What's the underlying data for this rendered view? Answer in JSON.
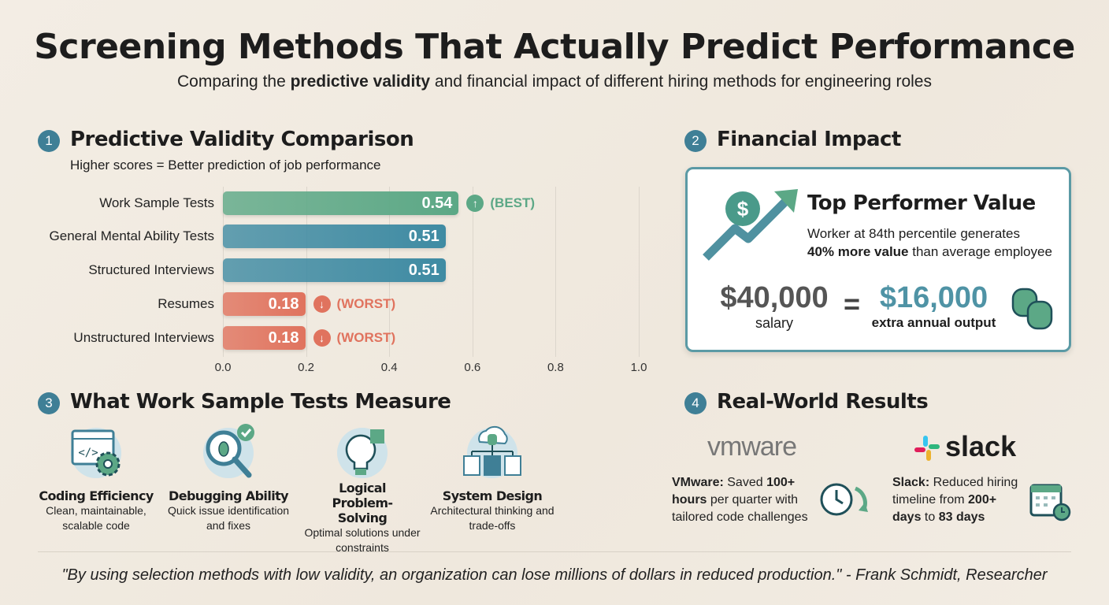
{
  "title": "Screening Methods That Actually Predict Performance",
  "subtitle": {
    "pre": "Comparing the ",
    "bold": "predictive validity",
    "post": " and financial impact of different hiring methods for engineering roles"
  },
  "sections": [
    {
      "number": "1",
      "heading": "Predictive Validity Comparison",
      "subtext": "Higher scores = Better prediction of job performance"
    },
    {
      "number": "2",
      "heading": "Financial Impact"
    },
    {
      "number": "3",
      "heading": "What Work Sample Tests Measure"
    },
    {
      "number": "4",
      "heading": "Real-World Results"
    }
  ],
  "chart_data": {
    "type": "bar",
    "orientation": "horizontal",
    "categories": [
      "Work Sample Tests",
      "General Mental Ability Tests",
      "Structured Interviews",
      "Resumes",
      "Unstructured Interviews"
    ],
    "values": [
      0.54,
      0.51,
      0.51,
      0.18,
      0.18
    ],
    "data_labels": [
      "0.54",
      "0.51",
      "0.51",
      "0.18",
      "0.18"
    ],
    "annotations": [
      "(BEST)",
      "",
      "",
      "(WORST)",
      "(WORST)"
    ],
    "xlim": [
      0,
      1.0
    ],
    "xticks": [
      "0.0",
      "0.2",
      "0.4",
      "0.6",
      "0.8",
      "1.0"
    ],
    "grid": true,
    "colors": [
      "#5ca886",
      "#3f8ba3",
      "#3f8ba3",
      "#e0735e",
      "#e0735e"
    ]
  },
  "financial": {
    "title": "Top Performer Value",
    "line1": "Worker at 84th percentile generates",
    "bold": "40% more value",
    "line2": " than average employee",
    "salary": "$40,000",
    "salary_label": "salary",
    "equals": "=",
    "output": "$16,000",
    "output_label": "extra annual output"
  },
  "features": [
    {
      "title": "Coding Efficiency",
      "desc": "Clean, maintainable, scalable code",
      "icon": "code-window-gear-icon"
    },
    {
      "title": "Debugging Ability",
      "desc": "Quick issue identification and fixes",
      "icon": "bug-magnifier-icon"
    },
    {
      "title": "Logical Problem-Solving",
      "desc": "Optimal solutions under constraints",
      "icon": "lightbulb-puzzle-icon"
    },
    {
      "title": "System Design",
      "desc": "Architectural thinking and trade-offs",
      "icon": "cloud-servers-icon"
    }
  ],
  "results": [
    {
      "logo": "vmware",
      "bold1": "VMware:",
      "t1": " Saved ",
      "bold2": "100+ hours",
      "t2": " per quarter with tailored code challenges",
      "icon": "clock-icon"
    },
    {
      "logo": "slack",
      "bold1": "Slack:",
      "t1": " Reduced hiring timeline from ",
      "bold2": "200+ days",
      "t2": " to ",
      "bold3": "83 days",
      "icon": "calendar-icon"
    }
  ],
  "quote": "\"By using selection methods with low validity, an organization can lose millions of dollars in reduced production.\" - Frank Schmidt, Researcher"
}
